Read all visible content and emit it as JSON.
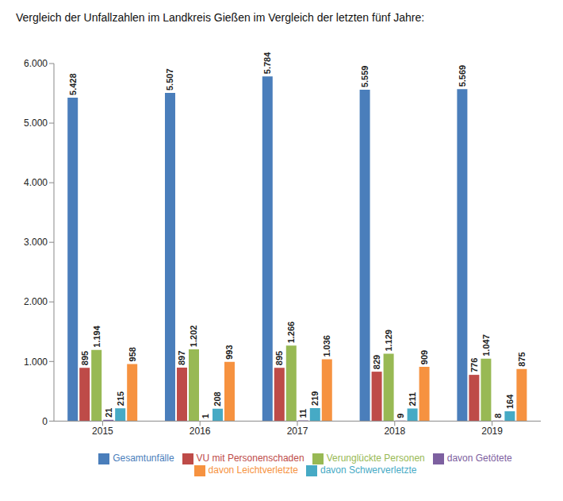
{
  "chart_data": {
    "type": "bar",
    "title": "Vergleich der Unfallzahlen im Landkreis Gießen im Vergleich der letzten fünf Jahre:",
    "categories": [
      "2015",
      "2016",
      "2017",
      "2018",
      "2019"
    ],
    "series": [
      {
        "name": "Gesamtunfälle",
        "color": "#4a7ebb",
        "values": [
          5428,
          5507,
          5784,
          5559,
          5569
        ],
        "value_labels": [
          "5.428",
          "5.507",
          "5.784",
          "5.559",
          "5.569"
        ]
      },
      {
        "name": "VU mit Personenschaden",
        "color": "#be4b48",
        "values": [
          895,
          897,
          895,
          829,
          776
        ],
        "value_labels": [
          "895",
          "897",
          "895",
          "829",
          "776"
        ]
      },
      {
        "name": "Verunglückte Personen",
        "color": "#98b954",
        "values": [
          1194,
          1202,
          1266,
          1129,
          1047
        ],
        "value_labels": [
          "1.194",
          "1.202",
          "1.266",
          "1.129",
          "1.047"
        ]
      },
      {
        "name": "davon Getötete",
        "color": "#7d60a0",
        "values": [
          21,
          1,
          11,
          9,
          8
        ],
        "value_labels": [
          "21",
          "1",
          "11",
          "9",
          "8"
        ]
      },
      {
        "name": "davon Schwerverletzte",
        "color": "#46aac5",
        "values": [
          215,
          208,
          219,
          211,
          164
        ],
        "value_labels": [
          "215",
          "208",
          "219",
          "211",
          "164"
        ]
      },
      {
        "name": "davon Leichtverletzte",
        "color": "#f69240",
        "values": [
          958,
          993,
          1036,
          909,
          875
        ],
        "value_labels": [
          "958",
          "993",
          "1.036",
          "909",
          "875"
        ]
      }
    ],
    "ylim": [
      0,
      6000
    ],
    "yticks": [
      0,
      {
        "value": 1000,
        "label": "1.000"
      },
      {
        "value": 2000,
        "label": "2.000"
      },
      {
        "value": 3000,
        "label": "3.000"
      },
      {
        "value": 4000,
        "label": "4.000"
      },
      {
        "value": 5000,
        "label": "5.000"
      },
      {
        "value": 6000,
        "label": "6.000"
      }
    ],
    "grid": false,
    "legend": "bottom",
    "data_labels": true
  }
}
